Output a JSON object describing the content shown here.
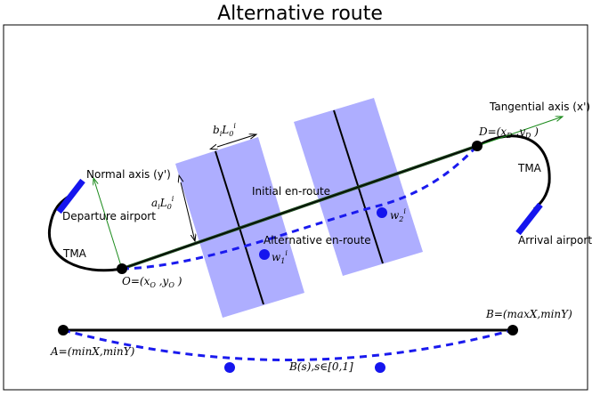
{
  "title": "Alternative route",
  "labels": {
    "tangential_axis": "Tangential axis (x')",
    "normal_axis": "Normal axis (y')",
    "departure_airport": "Departure airport",
    "arrival_airport": "Arrival airport",
    "tma_left": "TMA",
    "tma_right": "TMA",
    "initial_route": "Initial en-route",
    "alternative_route": "Alternative en-route"
  },
  "math": {
    "O": "O=(xO ,yO )",
    "D": "D=(xD ,yD )",
    "A": "A=(minX,minY)",
    "B": "B=(maxX,minY)",
    "Bs": "B(s),s∈[0,1]",
    "bL": "biL0i",
    "aL": "aiL0i",
    "w1": "w1i",
    "w2": "w2i"
  },
  "colors": {
    "route": "#000000",
    "alt_route": "#1a1aee",
    "rect_fill": "#aaaaff",
    "axis_green": "#1a8a1a",
    "airport_blue": "#1515ee"
  }
}
